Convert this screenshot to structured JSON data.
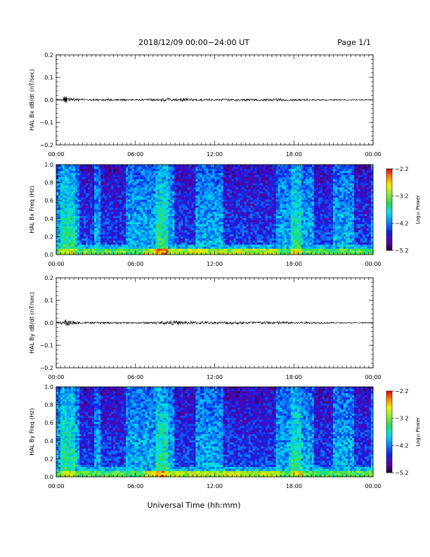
{
  "page": {
    "header_title": "2018/12/09   00:00−24:00 UT",
    "page_label": "Page 1/1",
    "footer_xlabel": "Universal Time (hh:mm)"
  },
  "chart_data": [
    {
      "type": "line",
      "id": "bx-dbdt",
      "ylabel": "HAL Bx dB/dt (nT/sec)",
      "ylim": [
        -0.2,
        0.2
      ],
      "yticks": [
        "0.2",
        "0.1",
        "0.0",
        "−0.1",
        "−0.2"
      ],
      "ytick_values": [
        0.2,
        0.1,
        0.0,
        -0.1,
        -0.2
      ],
      "xlim_hours": [
        0,
        24
      ],
      "xticks": [
        "00:00",
        "06:00",
        "12:00",
        "18:00",
        "00:00"
      ],
      "series": [
        {
          "activity_profile": [
            {
              "hour": 0.0,
              "amplitude": 0.003
            },
            {
              "hour": 0.5,
              "amplitude": 0.006
            },
            {
              "hour": 0.65,
              "amplitude": 0.02
            },
            {
              "hour": 0.9,
              "amplitude": 0.008
            },
            {
              "hour": 2.0,
              "amplitude": 0.004
            },
            {
              "hour": 4.0,
              "amplitude": 0.004
            },
            {
              "hour": 6.0,
              "amplitude": 0.003
            },
            {
              "hour": 7.5,
              "amplitude": 0.005
            },
            {
              "hour": 8.5,
              "amplitude": 0.008
            },
            {
              "hour": 9.5,
              "amplitude": 0.007
            },
            {
              "hour": 10.5,
              "amplitude": 0.005
            },
            {
              "hour": 12.0,
              "amplitude": 0.004
            },
            {
              "hour": 13.5,
              "amplitude": 0.005
            },
            {
              "hour": 15.0,
              "amplitude": 0.005
            },
            {
              "hour": 17.0,
              "amplitude": 0.005
            },
            {
              "hour": 18.5,
              "amplitude": 0.004
            },
            {
              "hour": 21.0,
              "amplitude": 0.003
            },
            {
              "hour": 24.0,
              "amplitude": 0.002
            }
          ]
        }
      ]
    },
    {
      "type": "heatmap",
      "id": "bx-spectrogram",
      "ylabel": "HAL Bx Freq (Hz)",
      "ylim": [
        0.0,
        1.0
      ],
      "yticks": [
        "1.0",
        "0.8",
        "0.6",
        "0.4",
        "0.2",
        "0.0"
      ],
      "ytick_values": [
        1.0,
        0.8,
        0.6,
        0.4,
        0.2,
        0.0
      ],
      "xlim_hours": [
        0,
        24
      ],
      "xticks": [
        "00:00",
        "06:00",
        "12:00",
        "18:00",
        "00:00"
      ],
      "colorbar": {
        "label": "Log₁₀ Power",
        "range": [
          -5.2,
          -2.2
        ],
        "ticks": [
          "−2.2",
          "−3.2",
          "−4.2",
          "−5.2"
        ],
        "tick_values": [
          -2.2,
          -3.2,
          -4.2,
          -5.2
        ]
      },
      "features": {
        "quiet_bands_hours": [
          [
            1.7,
            2.8
          ],
          [
            3.4,
            5.3
          ],
          [
            9.0,
            10.6
          ],
          [
            12.6,
            16.6
          ],
          [
            19.6,
            21.0
          ],
          [
            22.6,
            23.8
          ]
        ],
        "active_columns_hours": [
          [
            0.3,
            1.4
          ],
          [
            7.5,
            8.4
          ],
          [
            17.8,
            18.5
          ]
        ],
        "low_freq_enhancement_hours": [
          [
            6.5,
            17.0
          ]
        ]
      }
    },
    {
      "type": "line",
      "id": "by-dbdt",
      "ylabel": "HAL By dB/dt (nT/sec)",
      "ylim": [
        -0.2,
        0.2
      ],
      "yticks": [
        "0.2",
        "0.1",
        "0.0",
        "−0.1",
        "−0.2"
      ],
      "ytick_values": [
        0.2,
        0.1,
        0.0,
        -0.1,
        -0.2
      ],
      "xlim_hours": [
        0,
        24
      ],
      "xticks": [
        "00:00",
        "06:00",
        "12:00",
        "18:00",
        "00:00"
      ],
      "series": [
        {
          "activity_profile": [
            {
              "hour": 0.0,
              "amplitude": 0.003
            },
            {
              "hour": 0.5,
              "amplitude": 0.007
            },
            {
              "hour": 0.75,
              "amplitude": 0.018
            },
            {
              "hour": 1.2,
              "amplitude": 0.01
            },
            {
              "hour": 2.0,
              "amplitude": 0.004
            },
            {
              "hour": 4.0,
              "amplitude": 0.004
            },
            {
              "hour": 6.0,
              "amplitude": 0.003
            },
            {
              "hour": 7.5,
              "amplitude": 0.005
            },
            {
              "hour": 8.5,
              "amplitude": 0.009
            },
            {
              "hour": 9.5,
              "amplitude": 0.008
            },
            {
              "hour": 10.5,
              "amplitude": 0.006
            },
            {
              "hour": 12.0,
              "amplitude": 0.005
            },
            {
              "hour": 13.5,
              "amplitude": 0.006
            },
            {
              "hour": 15.0,
              "amplitude": 0.006
            },
            {
              "hour": 17.0,
              "amplitude": 0.006
            },
            {
              "hour": 18.5,
              "amplitude": 0.005
            },
            {
              "hour": 21.0,
              "amplitude": 0.003
            },
            {
              "hour": 24.0,
              "amplitude": 0.002
            }
          ]
        }
      ]
    },
    {
      "type": "heatmap",
      "id": "by-spectrogram",
      "ylabel": "HAL By Freq (Hz)",
      "ylim": [
        0.0,
        1.0
      ],
      "yticks": [
        "1.0",
        "0.8",
        "0.6",
        "0.4",
        "0.2",
        "0.0"
      ],
      "ytick_values": [
        1.0,
        0.8,
        0.6,
        0.4,
        0.2,
        0.0
      ],
      "xlim_hours": [
        0,
        24
      ],
      "xticks": [
        "00:00",
        "06:00",
        "12:00",
        "18:00",
        "00:00"
      ],
      "colorbar": {
        "label": "Log₁₀ Power",
        "range": [
          -5.2,
          -2.2
        ],
        "ticks": [
          "−2.2",
          "−3.2",
          "−4.2",
          "−5.2"
        ],
        "tick_values": [
          -2.2,
          -3.2,
          -4.2,
          -5.2
        ]
      },
      "features": {
        "quiet_bands_hours": [
          [
            1.7,
            2.8
          ],
          [
            3.4,
            5.3
          ],
          [
            9.0,
            10.6
          ],
          [
            12.6,
            16.6
          ],
          [
            19.6,
            21.0
          ],
          [
            22.6,
            23.8
          ]
        ],
        "active_columns_hours": [
          [
            0.3,
            1.4
          ],
          [
            7.5,
            8.4
          ],
          [
            17.8,
            18.5
          ]
        ],
        "low_freq_enhancement_hours": [
          [
            6.5,
            17.0
          ]
        ]
      }
    }
  ]
}
